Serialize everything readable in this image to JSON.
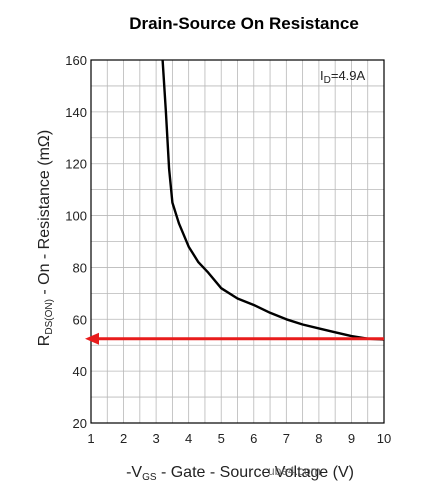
{
  "chart_data": {
    "type": "line",
    "title": "Drain-Source On Resistance",
    "xlabel": {
      "prefix": "-V",
      "sub": "GS",
      "rest": " - Gate - Source Voltage (V)"
    },
    "ylabel": {
      "prefix": "R",
      "sub": "DS(ON)",
      "rest": " - On - Resistance (mΩ)"
    },
    "xlim": [
      1,
      10
    ],
    "ylim": [
      20,
      160
    ],
    "xticks": [
      "1",
      "2",
      "3",
      "4",
      "5",
      "6",
      "7",
      "8",
      "9",
      "10"
    ],
    "yticks": [
      "20",
      "40",
      "60",
      "80",
      "100",
      "120",
      "140",
      "160"
    ],
    "grid": true,
    "annotation": {
      "prefix": "I",
      "sub": "D",
      "rest": "=4.9A"
    },
    "series": [
      {
        "color": "#000000",
        "x": [
          3.2,
          3.3,
          3.4,
          3.5,
          3.7,
          4.0,
          4.3,
          4.6,
          5.0,
          5.5,
          6.0,
          6.5,
          7.0,
          7.5,
          8.0,
          8.5,
          9.0,
          9.5,
          10.0
        ],
        "y": [
          160,
          140,
          118,
          105,
          97,
          88,
          82,
          78,
          72,
          68,
          65.5,
          62.5,
          60,
          58,
          56.5,
          55,
          53.5,
          52.5,
          52.2
        ]
      }
    ],
    "reference_line": {
      "color": "#e81c1c",
      "y": 52.5,
      "x": [
        1,
        10
      ]
    },
    "watermark": "ube4.com"
  }
}
